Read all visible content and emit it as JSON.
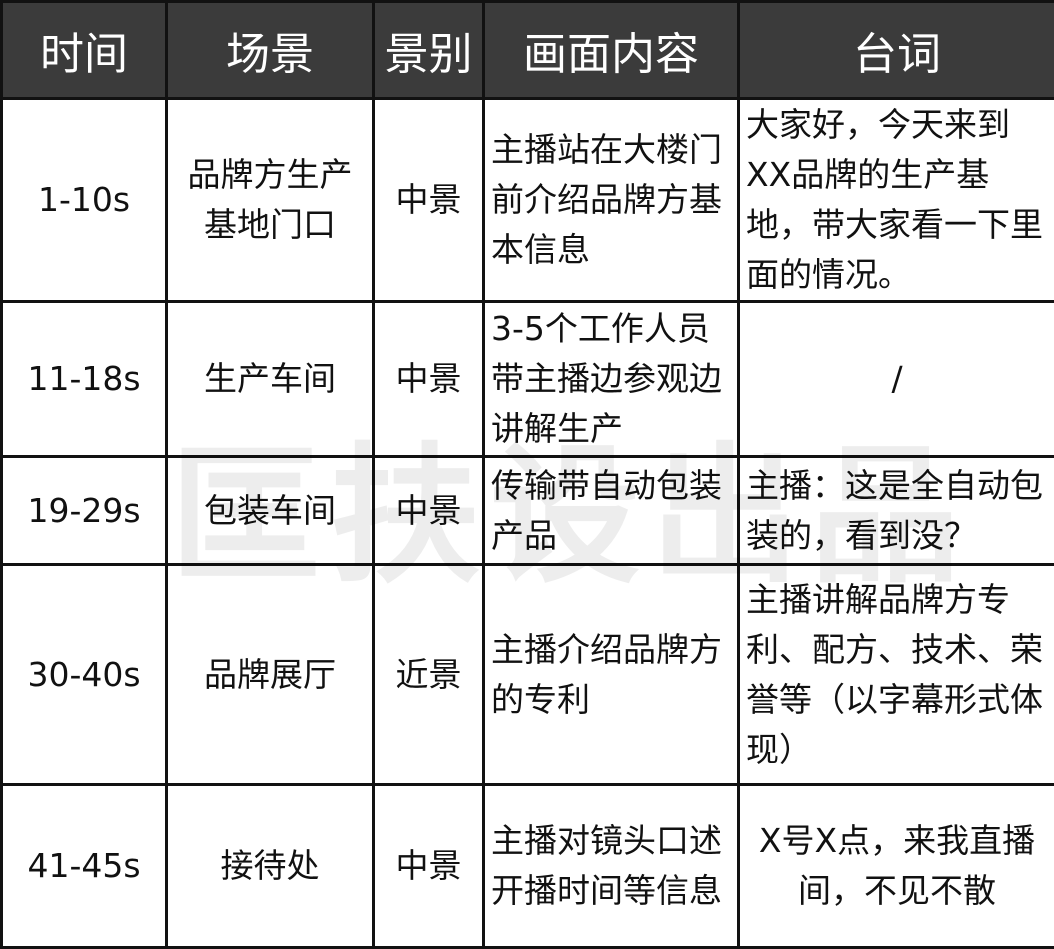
{
  "headers": [
    "时间",
    "场景",
    "景别",
    "画面内容",
    "台词"
  ],
  "rows": [
    {
      "time": "1-10s",
      "scene": "品牌方生产基地门口",
      "shot": "中景",
      "content": "主播站在大楼门前介绍品牌方基本信息",
      "line": "大家好，今天来到XX品牌的生产基地，带大家看一下里面的情况。"
    },
    {
      "time": "11-18s",
      "scene": "生产车间",
      "shot": "中景",
      "content": "3-5个工作人员带主播边参观边讲解生产",
      "line": "/"
    },
    {
      "time": "19-29s",
      "scene": "包装车间",
      "shot": "中景",
      "content": "传输带自动包装产品",
      "line": "主播：这是全自动包装的，看到没？"
    },
    {
      "time": "30-40s",
      "scene": "品牌展厅",
      "shot": "近景",
      "content": "主播介绍品牌方的专利",
      "line": "主播讲解品牌方专利、配方、技术、荣誉等（以字幕形式体现）"
    },
    {
      "time": "41-45s",
      "scene": "接待处",
      "shot": "中景",
      "content": "主播对镜头口述开播时间等信息",
      "line": "X号X点，来我直播间，不见不散"
    }
  ],
  "watermark": "匡扶设出品",
  "colors": {
    "header_bg": "#3b3b3b",
    "header_text": "#ffffff",
    "border": "#111111"
  }
}
